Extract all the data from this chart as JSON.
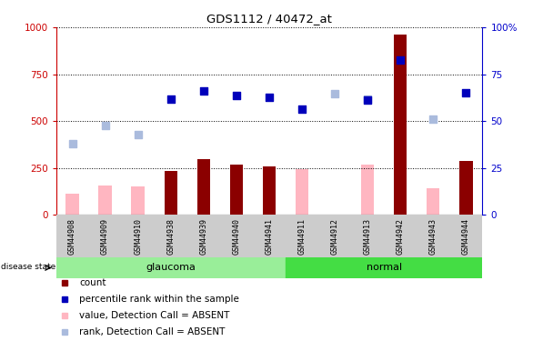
{
  "title": "GDS1112 / 40472_at",
  "samples": [
    "GSM44908",
    "GSM44909",
    "GSM44910",
    "GSM44938",
    "GSM44939",
    "GSM44940",
    "GSM44941",
    "GSM44911",
    "GSM44912",
    "GSM44913",
    "GSM44942",
    "GSM44943",
    "GSM44944"
  ],
  "groups": {
    "glaucoma": [
      0,
      1,
      2,
      3,
      4,
      5,
      6
    ],
    "normal": [
      7,
      8,
      9,
      10,
      11,
      12
    ]
  },
  "count_values": [
    null,
    null,
    null,
    235,
    295,
    270,
    260,
    null,
    null,
    null,
    960,
    null,
    285
  ],
  "count_color": "#8B0000",
  "value_absent": [
    115,
    155,
    150,
    null,
    null,
    null,
    null,
    245,
    null,
    270,
    null,
    140,
    null
  ],
  "value_absent_color": "#FFB6C1",
  "rank_absent": [
    380,
    475,
    430,
    null,
    null,
    null,
    null,
    null,
    645,
    615,
    null,
    510,
    null
  ],
  "rank_absent_color": "#AABBDD",
  "percentile_rank": [
    null,
    null,
    null,
    615,
    660,
    635,
    625,
    565,
    null,
    610,
    825,
    null,
    650
  ],
  "percentile_rank_color": "#0000BB",
  "ylim_left": [
    0,
    1000
  ],
  "yticks_left": [
    0,
    250,
    500,
    750,
    1000
  ],
  "yticks_right": [
    0,
    25,
    50,
    75,
    100
  ],
  "right_tick_labels": [
    "0",
    "25",
    "50",
    "75",
    "100%"
  ],
  "left_axis_color": "#CC0000",
  "right_axis_color": "#0000CC",
  "glaucoma_color": "#99EE99",
  "normal_color": "#44DD44",
  "bg_color": "#CCCCCC",
  "disease_state_label": "disease state",
  "bar_width": 0.4,
  "legend_items": [
    {
      "color": "#8B0000",
      "label": "count"
    },
    {
      "color": "#0000BB",
      "label": "percentile rank within the sample"
    },
    {
      "color": "#FFB6C1",
      "label": "value, Detection Call = ABSENT"
    },
    {
      "color": "#AABBDD",
      "label": "rank, Detection Call = ABSENT"
    }
  ]
}
